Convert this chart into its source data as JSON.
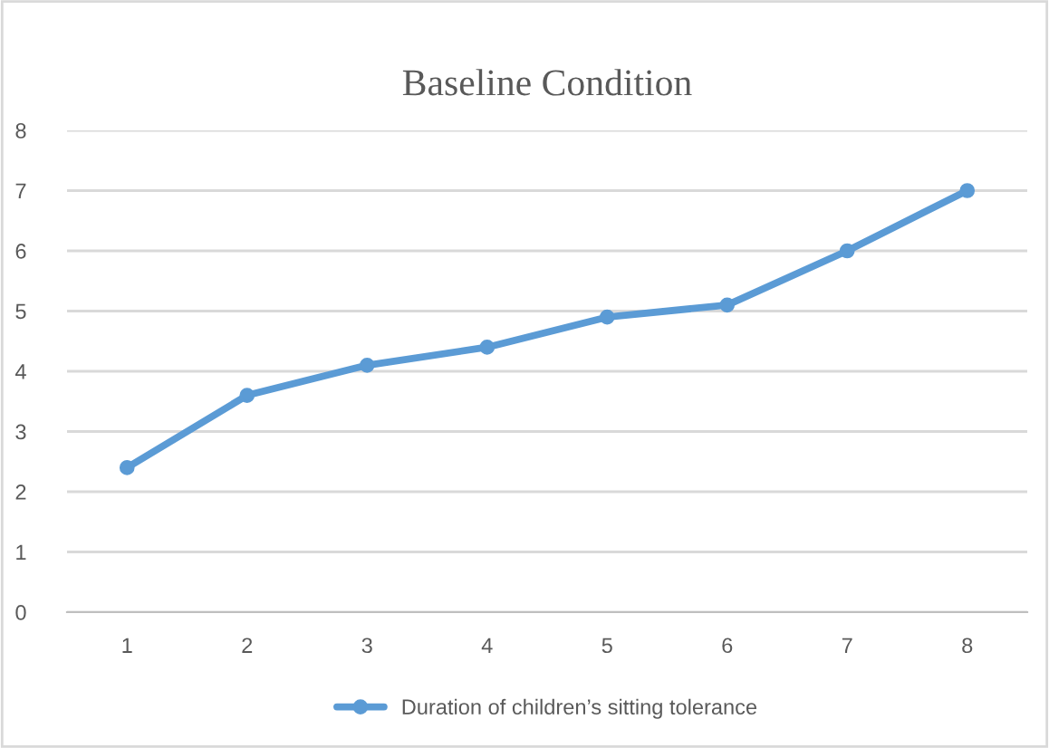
{
  "chart_data": {
    "type": "line",
    "title": "Baseline Condition",
    "categories": [
      "1",
      "2",
      "3",
      "4",
      "5",
      "6",
      "7",
      "8"
    ],
    "series": [
      {
        "name": "Duration of children’s sitting tolerance",
        "color": "#5b9bd5",
        "values": [
          2.4,
          3.6,
          4.1,
          4.4,
          4.9,
          5.1,
          6.0,
          7.0
        ]
      }
    ],
    "ylim": [
      0,
      8
    ],
    "yticks": [
      0,
      1,
      2,
      3,
      4,
      5,
      6,
      7,
      8
    ],
    "grid": "y",
    "legend": "bottom",
    "marker": "circle",
    "line_style": "solid"
  }
}
